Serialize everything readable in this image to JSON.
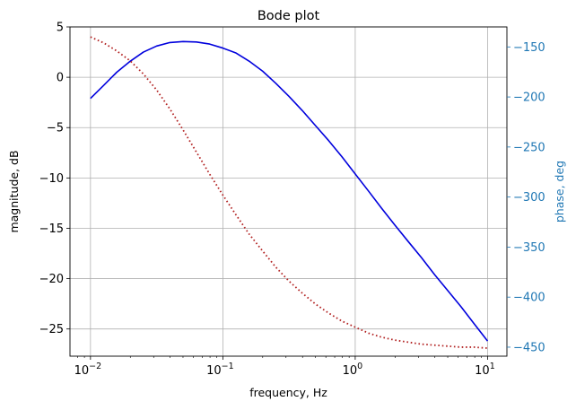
{
  "chart_data": {
    "type": "line",
    "title": "Bode plot",
    "xlabel": "frequency, Hz",
    "ylabel_left": "magnitude, dB",
    "ylabel_right": "phase, deg",
    "x_scale": "log",
    "xlim": [
      0.007,
      14
    ],
    "ylim_left": [
      -27.7,
      5
    ],
    "ylim_right": [
      -459,
      -130
    ],
    "grid": true,
    "x_ticks": [
      {
        "value": 0.01,
        "base": "10",
        "exp": "−2"
      },
      {
        "value": 0.1,
        "base": "10",
        "exp": "−1"
      },
      {
        "value": 1,
        "base": "10",
        "exp": "0"
      },
      {
        "value": 10,
        "base": "10",
        "exp": "1"
      }
    ],
    "y_ticks_left": [
      {
        "value": 5,
        "label": "5"
      },
      {
        "value": 0,
        "label": "0"
      },
      {
        "value": -5,
        "label": "−5"
      },
      {
        "value": -10,
        "label": "−10"
      },
      {
        "value": -15,
        "label": "−15"
      },
      {
        "value": -20,
        "label": "−20"
      },
      {
        "value": -25,
        "label": "−25"
      }
    ],
    "y_ticks_right": [
      {
        "value": -150,
        "label": "−150"
      },
      {
        "value": -200,
        "label": "−200"
      },
      {
        "value": -250,
        "label": "−250"
      },
      {
        "value": -300,
        "label": "−300"
      },
      {
        "value": -350,
        "label": "−350"
      },
      {
        "value": -400,
        "label": "−400"
      },
      {
        "value": -450,
        "label": "−450"
      }
    ],
    "series": [
      {
        "axis": "left",
        "style": "solid",
        "color": "#0000dd",
        "x": [
          0.01,
          0.0126,
          0.0158,
          0.02,
          0.0251,
          0.0316,
          0.0398,
          0.0501,
          0.0631,
          0.0794,
          0.1,
          0.126,
          0.158,
          0.2,
          0.251,
          0.316,
          0.398,
          0.501,
          0.631,
          0.794,
          1.0,
          1.26,
          1.58,
          2.0,
          2.51,
          3.16,
          3.98,
          5.01,
          6.31,
          7.94,
          10.0
        ],
        "y": [
          -2.1,
          -0.8,
          0.5,
          1.6,
          2.5,
          3.1,
          3.45,
          3.55,
          3.5,
          3.3,
          2.9,
          2.4,
          1.6,
          0.6,
          -0.6,
          -1.9,
          -3.3,
          -4.8,
          -6.3,
          -7.9,
          -9.6,
          -11.3,
          -13.0,
          -14.7,
          -16.3,
          -17.9,
          -19.6,
          -21.2,
          -22.8,
          -24.5,
          -26.2
        ]
      },
      {
        "axis": "right",
        "style": "dotted",
        "color": "#b22222",
        "x": [
          0.01,
          0.0126,
          0.0158,
          0.02,
          0.0251,
          0.0316,
          0.0398,
          0.0501,
          0.0631,
          0.0794,
          0.1,
          0.126,
          0.158,
          0.2,
          0.251,
          0.316,
          0.398,
          0.501,
          0.631,
          0.794,
          1.0,
          1.26,
          1.58,
          2.0,
          2.51,
          3.16,
          3.98,
          5.01,
          6.31,
          7.94,
          10.0
        ],
        "y": [
          -140,
          -146,
          -154,
          -164,
          -177,
          -193,
          -212,
          -233,
          -255,
          -277,
          -298,
          -318,
          -337,
          -354,
          -370,
          -384,
          -396,
          -407,
          -416,
          -424,
          -430,
          -436,
          -440,
          -443,
          -445,
          -447,
          -448,
          -449,
          -450,
          -450,
          -451
        ]
      }
    ]
  }
}
